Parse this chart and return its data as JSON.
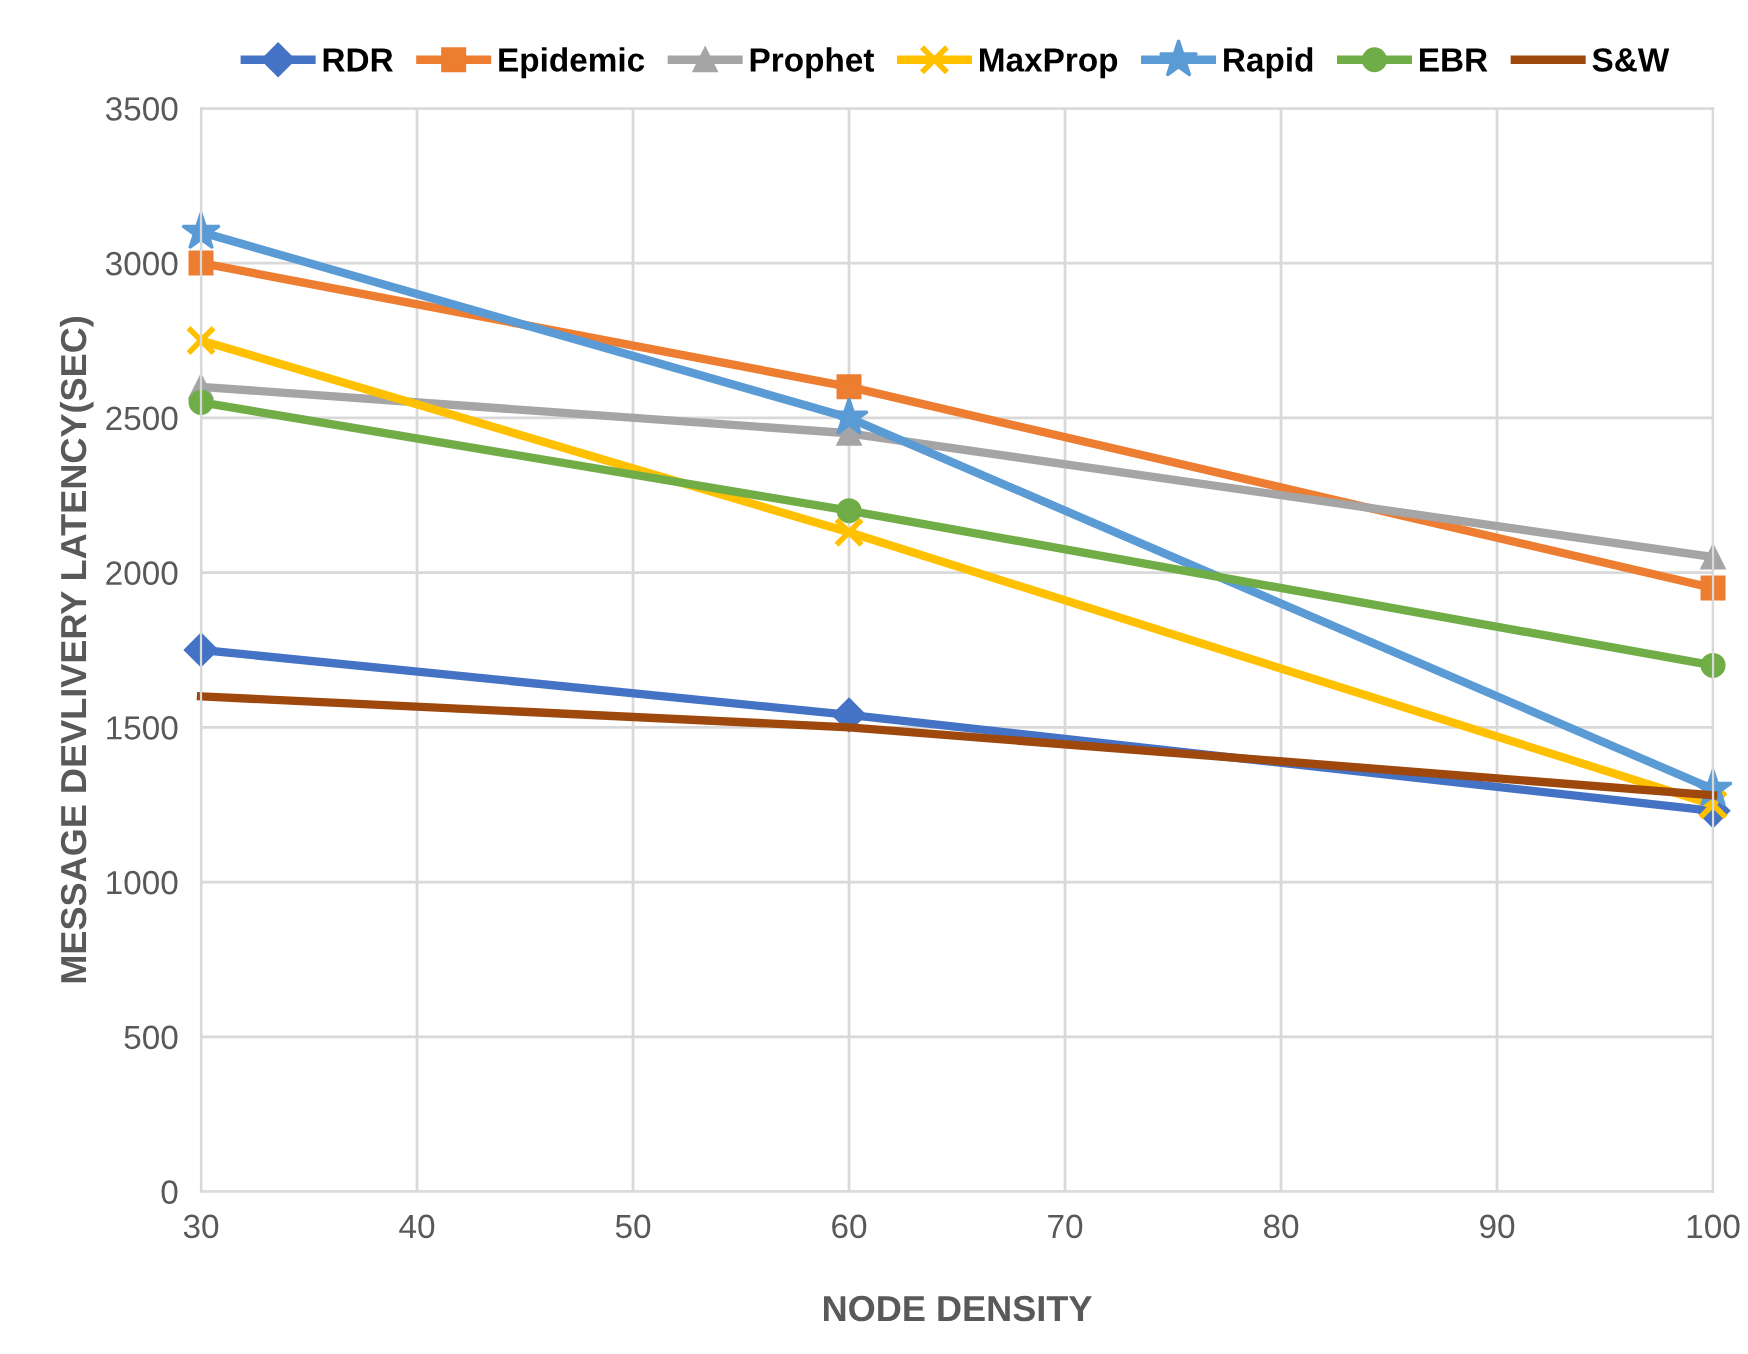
{
  "chart_data": {
    "type": "line",
    "xlabel": "NODE DENSITY",
    "ylabel": "MESSAGE DEVLIVERY LATENCY(SEC)",
    "x": [
      30,
      60,
      100
    ],
    "xlim": [
      30,
      100
    ],
    "xticks": [
      30,
      40,
      50,
      60,
      70,
      80,
      90,
      100
    ],
    "ylim": [
      0,
      3500
    ],
    "yticks": [
      0,
      500,
      1000,
      1500,
      2000,
      2500,
      3000,
      3500
    ],
    "grid": true,
    "legend": "top",
    "series": [
      {
        "name": "RDR",
        "color": "#4472c4",
        "marker": "diamond",
        "values": [
          1750,
          1540,
          1230
        ]
      },
      {
        "name": "Epidemic",
        "color": "#ed7d31",
        "marker": "square",
        "values": [
          3000,
          2600,
          1950
        ]
      },
      {
        "name": "Prophet",
        "color": "#a5a5a5",
        "marker": "triangle",
        "values": [
          2600,
          2450,
          2050
        ]
      },
      {
        "name": "MaxProp",
        "color": "#ffc000",
        "marker": "cross",
        "values": [
          2750,
          2130,
          1250
        ]
      },
      {
        "name": "Rapid",
        "color": "#5b9bd5",
        "marker": "star",
        "values": [
          3100,
          2500,
          1300
        ]
      },
      {
        "name": "EBR",
        "color": "#70ad47",
        "marker": "circle",
        "values": [
          2550,
          2200,
          1700
        ]
      },
      {
        "name": "S&W",
        "color": "#9e480e",
        "marker": "none",
        "values": [
          1600,
          1500,
          1280
        ]
      }
    ]
  }
}
